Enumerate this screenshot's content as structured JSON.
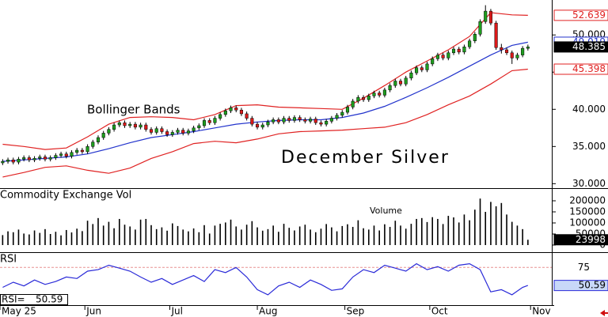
{
  "chart_data": [
    {
      "type": "candlestick",
      "title": "December Silver",
      "annotation": "Bollinger Bands",
      "color_up": "#1e9e1e",
      "color_down": "#dd1a1a",
      "xlim": [
        0,
        104
      ],
      "xticks": [
        {
          "value": 0,
          "label": "May 25"
        },
        {
          "value": 16,
          "label": "Jun"
        },
        {
          "value": 32,
          "label": "Jul"
        },
        {
          "value": 48.5,
          "label": "Aug"
        },
        {
          "value": 65,
          "label": "Sep"
        },
        {
          "value": 81,
          "label": "Oct"
        },
        {
          "value": 100,
          "label": "Nov"
        }
      ],
      "ylim": [
        29.4,
        54.7
      ],
      "yticks": [
        {
          "value": 30,
          "label": "30.000"
        },
        {
          "value": 35,
          "label": "35.000"
        },
        {
          "value": 40,
          "label": "40.000"
        },
        {
          "value": 45,
          "label": "45.000"
        },
        {
          "value": 50,
          "label": "50.000"
        }
      ],
      "open": [
        32.8,
        33.0,
        33.2,
        32.9,
        33.3,
        33.5,
        33.2,
        33.4,
        33.6,
        33.3,
        33.5,
        33.8,
        34.0,
        33.7,
        34.2,
        34.5,
        34.3,
        35.0,
        35.6,
        36.2,
        36.8,
        37.3,
        37.9,
        38.2,
        37.8,
        38.0,
        37.6,
        37.9,
        37.3,
        36.9,
        37.4,
        37.0,
        36.6,
        36.9,
        37.2,
        36.8,
        37.1,
        37.5,
        37.8,
        38.5,
        38.2,
        38.8,
        39.3,
        39.8,
        40.2,
        39.9,
        39.4,
        38.8,
        38.0,
        37.6,
        37.9,
        38.3,
        38.6,
        38.3,
        38.8,
        38.5,
        38.9,
        38.6,
        38.4,
        38.7,
        38.2,
        38.0,
        38.4,
        38.8,
        39.2,
        39.6,
        40.3,
        41.1,
        41.6,
        41.3,
        41.8,
        42.2,
        41.9,
        42.6,
        43.2,
        43.8,
        43.4,
        44.2,
        44.9,
        45.6,
        45.3,
        46.1,
        46.8,
        47.3,
        46.9,
        47.6,
        48.1,
        47.7,
        48.4,
        49.2,
        50.1,
        51.8,
        53.2,
        51.6,
        48.3,
        48.0,
        47.6,
        46.9,
        47.3,
        48.2
      ],
      "high": [
        33.3,
        33.5,
        33.5,
        33.6,
        33.8,
        33.8,
        33.7,
        33.9,
        33.9,
        33.8,
        34.1,
        34.3,
        34.3,
        34.5,
        34.8,
        34.8,
        35.3,
        35.9,
        36.5,
        37.1,
        37.6,
        38.2,
        38.5,
        38.5,
        38.3,
        38.3,
        38.2,
        38.2,
        37.6,
        37.7,
        37.7,
        37.3,
        37.2,
        37.5,
        37.5,
        37.4,
        37.8,
        38.1,
        38.8,
        38.8,
        39.1,
        39.6,
        40.1,
        40.5,
        40.5,
        40.2,
        39.7,
        39.1,
        38.3,
        38.2,
        38.6,
        38.9,
        38.9,
        39.1,
        39.1,
        39.2,
        39.2,
        38.9,
        39.0,
        39.0,
        38.5,
        38.7,
        39.1,
        39.5,
        39.9,
        40.6,
        41.4,
        41.9,
        41.9,
        42.1,
        42.5,
        42.5,
        42.9,
        43.5,
        44.1,
        44.1,
        44.5,
        45.2,
        45.9,
        45.9,
        46.4,
        47.1,
        47.6,
        47.6,
        47.9,
        48.4,
        48.4,
        48.7,
        49.5,
        50.4,
        52.1,
        54.0,
        53.5,
        51.9,
        48.8,
        48.3,
        47.9,
        47.6,
        48.5,
        48.7
      ],
      "low": [
        32.5,
        32.7,
        32.6,
        32.6,
        33.0,
        32.9,
        32.9,
        33.1,
        33.0,
        33.0,
        33.2,
        33.5,
        33.4,
        33.4,
        33.9,
        34.0,
        34.0,
        34.7,
        35.3,
        35.9,
        36.5,
        37.0,
        37.6,
        37.5,
        37.5,
        37.3,
        37.3,
        37.0,
        36.6,
        36.6,
        36.7,
        36.3,
        36.3,
        36.6,
        36.5,
        36.5,
        36.8,
        37.2,
        37.5,
        37.9,
        37.9,
        38.5,
        39.0,
        39.5,
        39.6,
        39.1,
        38.5,
        37.7,
        37.3,
        37.3,
        37.6,
        38.0,
        38.0,
        38.0,
        38.2,
        38.2,
        38.3,
        38.1,
        38.1,
        37.9,
        37.7,
        37.7,
        38.1,
        38.5,
        38.9,
        39.3,
        40.0,
        40.8,
        41.0,
        41.0,
        41.5,
        41.6,
        41.6,
        42.3,
        42.9,
        43.1,
        43.1,
        43.9,
        44.6,
        45.0,
        45.0,
        45.8,
        46.5,
        46.6,
        46.6,
        47.3,
        47.4,
        47.4,
        48.1,
        48.9,
        49.8,
        51.5,
        51.3,
        48.0,
        47.5,
        47.3,
        46.1,
        46.6,
        47.0,
        47.9
      ],
      "close": [
        33.0,
        33.2,
        32.9,
        33.3,
        33.5,
        33.2,
        33.4,
        33.6,
        33.3,
        33.5,
        33.8,
        34.0,
        33.7,
        34.2,
        34.5,
        34.3,
        35.0,
        35.6,
        36.2,
        36.8,
        37.3,
        37.9,
        38.2,
        37.8,
        38.0,
        37.6,
        37.9,
        37.3,
        36.9,
        37.4,
        37.0,
        36.6,
        36.9,
        37.2,
        36.8,
        37.1,
        37.5,
        37.8,
        38.5,
        38.2,
        38.8,
        39.3,
        39.8,
        40.2,
        39.9,
        39.4,
        38.8,
        38.0,
        37.6,
        37.9,
        38.3,
        38.6,
        38.3,
        38.8,
        38.5,
        38.9,
        38.6,
        38.4,
        38.7,
        38.2,
        38.0,
        38.4,
        38.8,
        39.2,
        39.6,
        40.3,
        41.1,
        41.6,
        41.3,
        41.8,
        42.2,
        41.9,
        42.6,
        43.2,
        43.8,
        43.4,
        44.2,
        44.9,
        45.6,
        45.3,
        46.1,
        46.8,
        47.3,
        46.9,
        47.6,
        48.1,
        47.7,
        48.4,
        49.2,
        50.1,
        51.8,
        53.2,
        51.6,
        48.3,
        48.0,
        47.6,
        46.9,
        47.3,
        48.2,
        48.385
      ],
      "series": [
        {
          "color": "#e02222",
          "x": [
            0,
            4,
            8,
            12,
            16,
            20,
            24,
            28,
            32,
            36,
            40,
            44,
            48,
            52,
            56,
            60,
            64,
            68,
            72,
            76,
            80,
            84,
            88,
            92,
            96,
            99
          ],
          "values": [
            35.3,
            35.0,
            34.6,
            34.8,
            36.3,
            38.0,
            38.9,
            39.0,
            38.9,
            38.6,
            39.3,
            40.5,
            40.6,
            40.3,
            40.2,
            40.1,
            40.0,
            41.5,
            43.2,
            45.0,
            46.5,
            48.0,
            49.8,
            53.0,
            52.7,
            52.639
          ]
        },
        {
          "color": "#2233cc",
          "x": [
            0,
            4,
            8,
            12,
            16,
            20,
            24,
            28,
            32,
            36,
            40,
            44,
            48,
            52,
            56,
            60,
            64,
            68,
            72,
            76,
            80,
            84,
            88,
            92,
            96,
            99
          ],
          "values": [
            33.0,
            33.2,
            33.4,
            33.6,
            34.0,
            34.7,
            35.5,
            36.2,
            36.6,
            37.0,
            37.5,
            38.0,
            38.3,
            38.5,
            38.6,
            38.6,
            38.9,
            39.5,
            40.4,
            41.6,
            42.9,
            44.3,
            45.8,
            47.3,
            48.6,
            49.019
          ]
        },
        {
          "color": "#e02222",
          "x": [
            0,
            4,
            8,
            12,
            16,
            20,
            24,
            28,
            32,
            36,
            40,
            44,
            48,
            52,
            56,
            60,
            64,
            68,
            72,
            76,
            80,
            84,
            88,
            92,
            96,
            99
          ],
          "values": [
            30.9,
            31.5,
            32.2,
            32.4,
            31.8,
            31.4,
            32.1,
            33.4,
            34.3,
            35.4,
            35.7,
            35.5,
            36.0,
            36.7,
            37.0,
            37.1,
            37.2,
            37.4,
            37.6,
            38.2,
            39.3,
            40.6,
            41.8,
            43.4,
            45.2,
            45.398
          ]
        }
      ]
    },
    {
      "type": "bar",
      "title": "Commodity Exchange Vol",
      "label": "Volume",
      "color": "#000000",
      "ylim": [
        0,
        250000
      ],
      "yticks": [
        0,
        50000,
        100000,
        150000,
        200000
      ],
      "values": [
        45000,
        62000,
        58000,
        70000,
        52000,
        48000,
        66000,
        55000,
        72000,
        50000,
        60000,
        44000,
        68000,
        57000,
        74000,
        63000,
        110000,
        95000,
        122000,
        88000,
        105000,
        76000,
        118000,
        92000,
        84000,
        70000,
        115000,
        118000,
        90000,
        72000,
        80000,
        65000,
        98000,
        86000,
        70000,
        62000,
        75000,
        58000,
        90000,
        52000,
        88000,
        96000,
        102000,
        115000,
        84000,
        70000,
        92000,
        108000,
        80000,
        65000,
        72000,
        88000,
        60000,
        96000,
        78000,
        66000,
        84000,
        92000,
        70000,
        58000,
        74000,
        95000,
        80000,
        62000,
        86000,
        94000,
        82000,
        112000,
        76000,
        70000,
        88000,
        66000,
        94000,
        82000,
        110000,
        88000,
        74000,
        96000,
        118000,
        122000,
        104000,
        126000,
        118000,
        95000,
        132000,
        125000,
        102000,
        138000,
        112000,
        160000,
        210000,
        150000,
        195000,
        175000,
        190000,
        138000,
        105000,
        88000,
        72000,
        23998
      ]
    },
    {
      "type": "line",
      "title": "RSI",
      "readout_label": "RSI=",
      "color": "#2a2ad8",
      "reference_color": "#e89090",
      "ylim": [
        24,
        92.4
      ],
      "yticks": [
        75
      ],
      "x": [
        0,
        2,
        4,
        6,
        8,
        10,
        12,
        14,
        16,
        18,
        20,
        22,
        24,
        26,
        28,
        30,
        32,
        34,
        36,
        38,
        40,
        42,
        44,
        46,
        48,
        50,
        52,
        54,
        56,
        58,
        60,
        62,
        64,
        66,
        68,
        70,
        72,
        74,
        76,
        78,
        80,
        82,
        84,
        86,
        88,
        90,
        92,
        94,
        96,
        98,
        99
      ],
      "values": [
        48,
        55,
        50,
        58,
        52,
        56,
        62,
        60,
        70,
        72,
        78,
        74,
        70,
        62,
        55,
        60,
        52,
        58,
        64,
        56,
        72,
        68,
        75,
        62,
        45,
        38,
        50,
        55,
        48,
        58,
        52,
        44,
        46,
        62,
        72,
        68,
        78,
        74,
        70,
        80,
        72,
        76,
        70,
        78,
        80,
        72,
        42,
        45,
        38,
        48,
        50.59
      ]
    }
  ]
}
